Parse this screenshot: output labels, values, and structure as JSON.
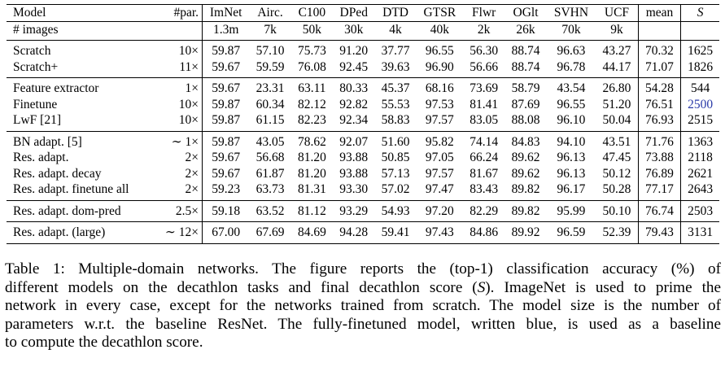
{
  "table": {
    "header": [
      "Model",
      "#par.",
      "ImNet",
      "Airc.",
      "C100",
      "DPed",
      "DTD",
      "GTSR",
      "Flwr",
      "OGlt",
      "SVHN",
      "UCF",
      "mean",
      "S"
    ],
    "images_row": [
      "# images",
      "",
      "1.3m",
      "7k",
      "50k",
      "30k",
      "4k",
      "40k",
      "2k",
      "26k",
      "70k",
      "9k",
      "",
      ""
    ],
    "groups": [
      [
        [
          "Scratch",
          "10×",
          "59.87",
          "57.10",
          "75.73",
          "91.20",
          "37.77",
          "96.55",
          "56.30",
          "88.74",
          "96.63",
          "43.27",
          "70.32",
          "1625"
        ],
        [
          "Scratch+",
          "11×",
          "59.67",
          "59.59",
          "76.08",
          "92.45",
          "39.63",
          "96.90",
          "56.66",
          "88.74",
          "96.78",
          "44.17",
          "71.07",
          "1826"
        ]
      ],
      [
        [
          "Feature extractor",
          "1×",
          "59.67",
          "23.31",
          "63.11",
          "80.33",
          "45.37",
          "68.16",
          "73.69",
          "58.79",
          "43.54",
          "26.80",
          "54.28",
          "544"
        ],
        [
          "Finetune",
          "10×",
          "59.87",
          "60.34",
          "82.12",
          "92.82",
          "55.53",
          "97.53",
          "81.41",
          "87.69",
          "96.55",
          "51.20",
          "76.51",
          "2500"
        ],
        [
          "LwF [21]",
          "10×",
          "59.87",
          "61.15",
          "82.23",
          "92.34",
          "58.83",
          "97.57",
          "83.05",
          "88.08",
          "96.10",
          "50.04",
          "76.93",
          "2515"
        ]
      ],
      [
        [
          "BN adapt. [5]",
          "∼ 1×",
          "59.87",
          "43.05",
          "78.62",
          "92.07",
          "51.60",
          "95.82",
          "74.14",
          "84.83",
          "94.10",
          "43.51",
          "71.76",
          "1363"
        ],
        [
          "Res. adapt.",
          "2×",
          "59.67",
          "56.68",
          "81.20",
          "93.88",
          "50.85",
          "97.05",
          "66.24",
          "89.62",
          "96.13",
          "47.45",
          "73.88",
          "2118"
        ],
        [
          "Res. adapt. decay",
          "2×",
          "59.67",
          "61.87",
          "81.20",
          "93.88",
          "57.13",
          "97.57",
          "81.67",
          "89.62",
          "96.13",
          "50.12",
          "76.89",
          "2621"
        ],
        [
          "Res. adapt. finetune all",
          "2×",
          "59.23",
          "63.73",
          "81.31",
          "93.30",
          "57.02",
          "97.47",
          "83.43",
          "89.82",
          "96.17",
          "50.28",
          "77.17",
          "2643"
        ]
      ],
      [
        [
          "Res. adapt. dom-pred",
          "2.5×",
          "59.18",
          "63.52",
          "81.12",
          "93.29",
          "54.93",
          "97.20",
          "82.29",
          "89.82",
          "95.99",
          "50.10",
          "76.74",
          "2503"
        ]
      ],
      [
        [
          "Res. adapt. (large)",
          "∼ 12×",
          "67.00",
          "67.69",
          "84.69",
          "94.28",
          "59.41",
          "97.43",
          "84.86",
          "89.92",
          "96.59",
          "52.39",
          "79.43",
          "3131"
        ]
      ]
    ],
    "highlight_color": "#2a3aa8"
  },
  "caption": {
    "lines": [
      "Table 1: Multiple-domain networks. The figure reports the (top-1) classification accuracy (%) of",
      "different models on the decathlon tasks and final decathlon score (S). ImageNet is used to prime the",
      "network in every case, except for the networks trained from scratch. The model size is the number of",
      "parameters w.r.t. the baseline ResNet. The fully-finetuned model, written blue, is used as a baseline",
      "to compute the decathlon score."
    ]
  }
}
